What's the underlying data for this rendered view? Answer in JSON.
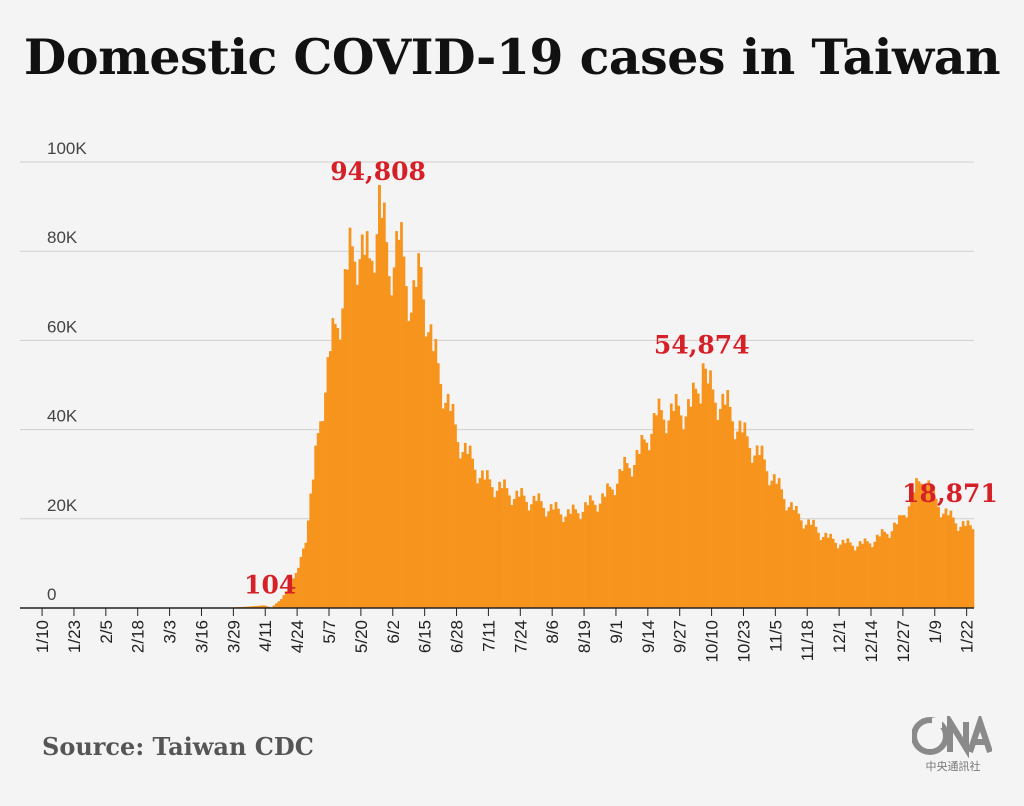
{
  "chart_data": {
    "type": "bar",
    "title": "Domestic COVID-19 cases in Taiwan",
    "xlabel": "",
    "ylabel": "",
    "ylim": [
      0,
      100000
    ],
    "y_ticks": [
      {
        "value": 0,
        "label": "0"
      },
      {
        "value": 20000,
        "label": "20K"
      },
      {
        "value": 40000,
        "label": "40K"
      },
      {
        "value": 60000,
        "label": "60K"
      },
      {
        "value": 80000,
        "label": "80K"
      },
      {
        "value": 100000,
        "label": "100K"
      }
    ],
    "x_start": "2022-01-01",
    "x_end": "2023-01-25",
    "x_ticks": [
      "1/10",
      "1/23",
      "2/5",
      "2/18",
      "3/3",
      "3/16",
      "3/29",
      "4/11",
      "4/24",
      "5/7",
      "5/20",
      "6/2",
      "6/15",
      "6/28",
      "7/11",
      "7/24",
      "8/6",
      "8/19",
      "9/1",
      "9/14",
      "9/27",
      "10/10",
      "10/23",
      "11/5",
      "11/18",
      "12/1",
      "12/14",
      "12/27",
      "1/9",
      "1/22"
    ],
    "x_tick_dates": [
      "2022-01-10",
      "2022-01-23",
      "2022-02-05",
      "2022-02-18",
      "2022-03-03",
      "2022-03-16",
      "2022-03-29",
      "2022-04-11",
      "2022-04-24",
      "2022-05-07",
      "2022-05-20",
      "2022-06-02",
      "2022-06-15",
      "2022-06-28",
      "2022-07-11",
      "2022-07-24",
      "2022-08-06",
      "2022-08-19",
      "2022-09-01",
      "2022-09-14",
      "2022-09-27",
      "2022-10-10",
      "2022-10-23",
      "2022-11-05",
      "2022-11-18",
      "2022-12-01",
      "2022-12-14",
      "2022-12-27",
      "2023-01-09",
      "2023-01-22"
    ],
    "series": [
      {
        "color": "#f7941d",
        "points": [
          [
            "2022-03-27",
            100
          ],
          [
            "2022-04-03",
            300
          ],
          [
            "2022-04-10",
            600
          ],
          [
            "2022-04-13",
            104
          ],
          [
            "2022-04-17",
            2000
          ],
          [
            "2022-04-21",
            5500
          ],
          [
            "2022-04-24",
            9000
          ],
          [
            "2022-04-27",
            17000
          ],
          [
            "2022-04-30",
            30000
          ],
          [
            "2022-05-03",
            45000
          ],
          [
            "2022-05-07",
            60000
          ],
          [
            "2022-05-11",
            70000
          ],
          [
            "2022-05-15",
            82000
          ],
          [
            "2022-05-19",
            85000
          ],
          [
            "2022-05-23",
            80000
          ],
          [
            "2022-05-27",
            94808
          ],
          [
            "2022-05-31",
            80000
          ],
          [
            "2022-06-04",
            86000
          ],
          [
            "2022-06-09",
            72000
          ],
          [
            "2022-06-13",
            78000
          ],
          [
            "2022-06-18",
            60000
          ],
          [
            "2022-06-23",
            50000
          ],
          [
            "2022-06-28",
            40000
          ],
          [
            "2022-07-03",
            35000
          ],
          [
            "2022-07-09",
            30000
          ],
          [
            "2022-07-16",
            28000
          ],
          [
            "2022-07-23",
            26000
          ],
          [
            "2022-07-30",
            25000
          ],
          [
            "2022-08-06",
            23000
          ],
          [
            "2022-08-13",
            22000
          ],
          [
            "2022-08-20",
            24000
          ],
          [
            "2022-08-27",
            26000
          ],
          [
            "2022-09-03",
            32000
          ],
          [
            "2022-09-10",
            36000
          ],
          [
            "2022-09-17",
            45000
          ],
          [
            "2022-09-24",
            46000
          ],
          [
            "2022-10-01",
            47000
          ],
          [
            "2022-10-06",
            54874
          ],
          [
            "2022-10-10",
            50000
          ],
          [
            "2022-10-16",
            47000
          ],
          [
            "2022-10-23",
            40000
          ],
          [
            "2022-10-30",
            35000
          ],
          [
            "2022-11-06",
            28000
          ],
          [
            "2022-11-13",
            22000
          ],
          [
            "2022-11-20",
            19000
          ],
          [
            "2022-11-27",
            16000
          ],
          [
            "2022-12-04",
            15000
          ],
          [
            "2022-12-11",
            15000
          ],
          [
            "2022-12-18",
            17000
          ],
          [
            "2022-12-25",
            20000
          ],
          [
            "2022-12-30",
            26000
          ],
          [
            "2023-01-04",
            31000
          ],
          [
            "2023-01-09",
            25000
          ],
          [
            "2023-01-15",
            21000
          ],
          [
            "2023-01-22",
            18871
          ],
          [
            "2023-01-24",
            19000
          ]
        ]
      }
    ],
    "annotations": [
      {
        "date": "2022-04-13",
        "value": 104,
        "label": "104"
      },
      {
        "date": "2022-05-27",
        "value": 94808,
        "label": "94,808"
      },
      {
        "date": "2022-10-06",
        "value": 54874,
        "label": "54,874"
      },
      {
        "date": "2023-01-17",
        "value": 18871,
        "label": "18,871"
      }
    ]
  },
  "footer": {
    "source": "Source: Taiwan CDC",
    "logo_text": "CNA",
    "logo_subtext": "中央通訊社"
  }
}
